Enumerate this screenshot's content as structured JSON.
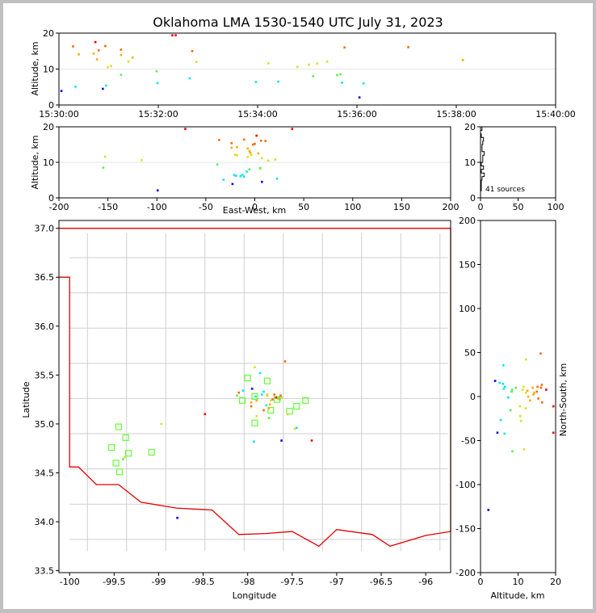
{
  "chart_data": {
    "type": "scatter",
    "title": "Oklahoma LMA 1530-1540 UTC July 31, 2023",
    "source_count_label": "41 sources",
    "colorscale": [
      "#0000dd",
      "#0000ff",
      "#00e5ff",
      "#55ee55",
      "#dddd22",
      "#ffaa00",
      "#ff6600",
      "#ee0000"
    ],
    "panels": {
      "time_height": {
        "ylabel": "Altitude, km",
        "xlim": [
          0,
          600
        ],
        "ylim": [
          0,
          20
        ],
        "xticks": [
          {
            "v": 0,
            "label": "15:30:00"
          },
          {
            "v": 120,
            "label": "15:32:00"
          },
          {
            "v": 240,
            "label": "15:34:00"
          },
          {
            "v": 360,
            "label": "15:36:00"
          },
          {
            "v": 480,
            "label": "15:38:00"
          },
          {
            "v": 600,
            "label": "15:40:00"
          }
        ],
        "yticks": [
          0,
          10,
          20
        ]
      },
      "ew_height": {
        "xlabel": "East-West, km",
        "ylabel": "Altitude, km",
        "xlim": [
          -200,
          200
        ],
        "ylim": [
          0,
          20
        ],
        "xticks": [
          -200,
          -150,
          -100,
          -50,
          0,
          50,
          100,
          150,
          200
        ],
        "yticks": [
          0,
          10,
          20
        ]
      },
      "histogram": {
        "xlim": [
          0,
          100
        ],
        "ylim": [
          0,
          20
        ],
        "xticks": [
          0,
          50,
          100
        ],
        "yticks": [
          0,
          10,
          20
        ]
      },
      "plan": {
        "xlabel": "Longitude",
        "ylabel": "Latitude",
        "xlim": [
          -100.12,
          -95.72
        ],
        "ylim": [
          33.48,
          37.08
        ],
        "xticks": [
          -100.0,
          -99.5,
          -99.0,
          -98.5,
          -98.0,
          -97.5,
          -97.0,
          -96.5,
          -96.0
        ],
        "yticks": [
          33.5,
          34.0,
          34.5,
          35.0,
          35.5,
          36.0,
          36.5,
          37.0
        ],
        "stations": [
          [
            -98.0,
            35.47
          ],
          [
            -97.78,
            35.44
          ],
          [
            -98.06,
            35.24
          ],
          [
            -97.92,
            35.28
          ],
          [
            -97.92,
            35.01
          ],
          [
            -97.74,
            35.14
          ],
          [
            -97.67,
            35.25
          ],
          [
            -97.53,
            35.13
          ],
          [
            -97.45,
            35.18
          ],
          [
            -97.35,
            35.24
          ],
          [
            -99.45,
            34.97
          ],
          [
            -99.37,
            34.86
          ],
          [
            -99.34,
            34.7
          ],
          [
            -99.08,
            34.71
          ],
          [
            -99.53,
            34.76
          ],
          [
            -99.48,
            34.6
          ],
          [
            -99.44,
            34.51
          ]
        ]
      },
      "ns_height": {
        "xlabel": "Altitude, km",
        "ylabel": "North-South, km",
        "xlim": [
          0,
          20
        ],
        "ylim": [
          -200,
          200
        ],
        "xticks": [
          0,
          10,
          20
        ],
        "yticks": [
          -200,
          -150,
          -100,
          -50,
          0,
          50,
          100,
          150,
          200
        ]
      }
    },
    "sources": [
      {
        "t": 3,
        "lon": -97.95,
        "lat": 35.36,
        "alt": 3.9
      },
      {
        "t": 17,
        "lon": -98.1,
        "lat": 35.32,
        "alt": 16.3
      },
      {
        "t": 20,
        "lon": -98.05,
        "lat": 35.34,
        "alt": 5.1
      },
      {
        "t": 24,
        "lon": -97.96,
        "lat": 35.22,
        "alt": 14.1
      },
      {
        "t": 42,
        "lon": -97.9,
        "lat": 35.24,
        "alt": 14.3
      },
      {
        "t": 44,
        "lon": -97.68,
        "lat": 35.27,
        "alt": 17.5
      },
      {
        "t": 46,
        "lon": -97.75,
        "lat": 35.2,
        "alt": 12.7
      },
      {
        "t": 48,
        "lon": -97.7,
        "lat": 35.3,
        "alt": 15.2
      },
      {
        "t": 53,
        "lon": -97.62,
        "lat": 34.83,
        "alt": 4.5
      },
      {
        "t": 56,
        "lon": -97.82,
        "lat": 35.14,
        "alt": 16.4
      },
      {
        "t": 57,
        "lon": -97.45,
        "lat": 34.96,
        "alt": 5.4
      },
      {
        "t": 59,
        "lon": -97.55,
        "lat": 35.1,
        "alt": 10.5
      },
      {
        "t": 63,
        "lon": -97.47,
        "lat": 34.95,
        "alt": 10.8
      },
      {
        "t": 75,
        "lon": -97.64,
        "lat": 35.27,
        "alt": 8.4
      },
      {
        "t": 75,
        "lon": -97.78,
        "lat": 35.29,
        "alt": 13.9
      },
      {
        "t": 75,
        "lon": -97.96,
        "lat": 35.18,
        "alt": 15.4
      },
      {
        "t": 84,
        "lon": -97.92,
        "lat": 35.58,
        "alt": 12.1
      },
      {
        "t": 89,
        "lon": -97.76,
        "lat": 35.16,
        "alt": 13.2
      },
      {
        "t": 119,
        "lon": -97.86,
        "lat": 35.52,
        "alt": 6.1
      },
      {
        "t": 137,
        "lon": -98.48,
        "lat": 35.1,
        "alt": 19.4
      },
      {
        "t": 141,
        "lon": -97.28,
        "lat": 34.83,
        "alt": 19.4
      },
      {
        "t": 161,
        "lon": -97.72,
        "lat": 35.25,
        "alt": 15.0
      },
      {
        "t": 166,
        "lon": -97.9,
        "lat": 35.08,
        "alt": 12.0
      },
      {
        "t": 158,
        "lon": -97.79,
        "lat": 35.19,
        "alt": 7.4
      },
      {
        "t": 118,
        "lon": -98.12,
        "lat": 35.29,
        "alt": 9.4
      },
      {
        "t": 238,
        "lon": -97.93,
        "lat": 34.82,
        "alt": 6.4
      },
      {
        "t": 253,
        "lon": -99.38,
        "lat": 34.66,
        "alt": 11.6
      },
      {
        "t": 265,
        "lon": -97.84,
        "lat": 35.3,
        "alt": 6.5
      },
      {
        "t": 288,
        "lon": -98.97,
        "lat": 35.0,
        "alt": 10.6
      },
      {
        "t": 302,
        "lon": -97.62,
        "lat": 35.27,
        "alt": 11.2
      },
      {
        "t": 307,
        "lon": -97.76,
        "lat": 35.06,
        "alt": 8.0
      },
      {
        "t": 312,
        "lon": -97.78,
        "lat": 35.3,
        "alt": 11.5
      },
      {
        "t": 324,
        "lon": -97.74,
        "lat": 35.24,
        "alt": 12.1
      },
      {
        "t": 336,
        "lon": -97.64,
        "lat": 35.25,
        "alt": 8.3
      },
      {
        "t": 340,
        "lon": -99.4,
        "lat": 34.64,
        "alt": 8.5
      },
      {
        "t": 342,
        "lon": -97.91,
        "lat": 35.28,
        "alt": 6.2
      },
      {
        "t": 345,
        "lon": -97.58,
        "lat": 35.64,
        "alt": 16.0
      },
      {
        "t": 363,
        "lon": -98.79,
        "lat": 34.04,
        "alt": 2.1
      },
      {
        "t": 368,
        "lon": -97.82,
        "lat": 35.33,
        "alt": 6.0
      },
      {
        "t": 422,
        "lon": -97.63,
        "lat": 35.29,
        "alt": 16.1
      },
      {
        "t": 488,
        "lon": -97.66,
        "lat": 35.26,
        "alt": 12.5
      }
    ]
  }
}
